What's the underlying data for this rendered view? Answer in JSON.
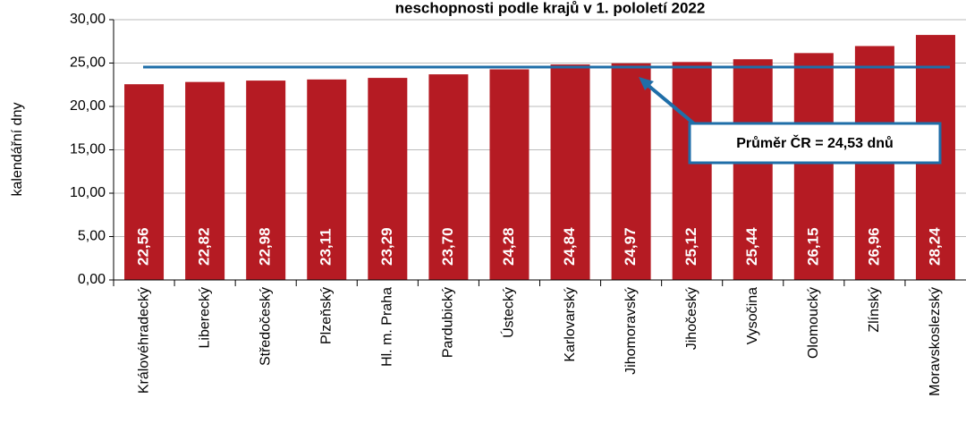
{
  "chart_data": {
    "type": "bar",
    "title": "neschopnosti podle krajů v 1. pololetí 2022",
    "ylabel": "kalendářní dny",
    "categories": [
      "Královéhradecký",
      "Liberecký",
      "Středočeský",
      "Plzeňský",
      "Hl. m. Praha",
      "Pardubický",
      "Ústecký",
      "Karlovarský",
      "Jihomoravský",
      "Jihočeský",
      "Vysočina",
      "Olomoucký",
      "Zlínský",
      "Moravskoslezský"
    ],
    "values": [
      22.56,
      22.82,
      22.98,
      23.11,
      23.29,
      23.7,
      24.28,
      24.84,
      24.97,
      25.12,
      25.44,
      26.15,
      26.96,
      28.24
    ],
    "value_labels": [
      "22,56",
      "22,82",
      "22,98",
      "23,11",
      "23,29",
      "23,70",
      "24,28",
      "24,84",
      "24,97",
      "25,12",
      "25,44",
      "26,15",
      "26,96",
      "28,24"
    ],
    "color": "#b51b23",
    "average": 24.53,
    "average_color": "#1f6ea8",
    "annotation": "Průměr ČR = 24,53 dnů",
    "ylim": [
      0,
      30
    ],
    "yticks": [
      {
        "value": 0,
        "label": "0,00"
      },
      {
        "value": 5,
        "label": "5,00"
      },
      {
        "value": 10,
        "label": "10,00"
      },
      {
        "value": 15,
        "label": "15,00"
      },
      {
        "value": 20,
        "label": "20,00"
      },
      {
        "value": 25,
        "label": "25,00"
      },
      {
        "value": 30,
        "label": "30,00"
      }
    ],
    "grid": true
  }
}
